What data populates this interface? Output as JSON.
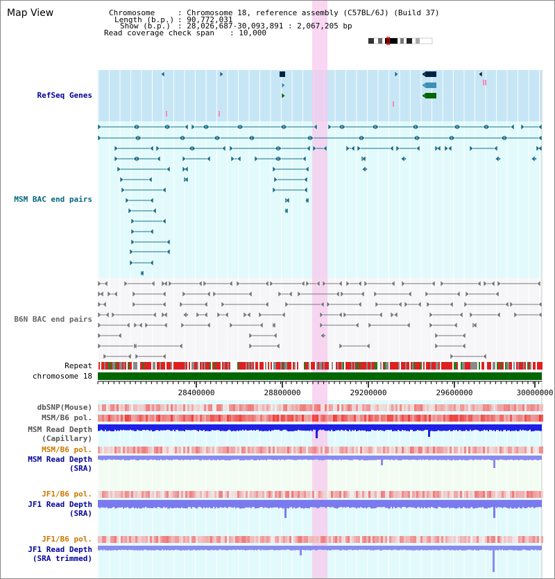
{
  "title": "Map View",
  "info": {
    "chromosome_key": "Chromosome",
    "chromosome_val": ": Chromosome 18, reference assembly (C57BL/6J) (Build 37)",
    "length_key": "Length (b.p.)",
    "length_val": ": 90,772,031",
    "show_key": "Show (b.p.)",
    "show_val": ": 28,026,687-30,093,891 : 2,067,205 bp",
    "coverage_key": "Read coverage check span",
    "coverage_val": ": 10,000"
  },
  "tracks": {
    "refseq": "RefSeq Genes",
    "msm_bac": "MSM BAC end pairs",
    "b6n_bac": "B6N BAC end pairs",
    "repeat": "Repeat",
    "chromosome": "chromosome 18",
    "dbsnp": "dbSNP(Mouse)",
    "msm_b6_pol_cap": "MSM/B6 pol.",
    "msm_depth_cap_1": "MSM Read Depth",
    "msm_depth_cap_2": "(Capillary)",
    "msm_b6_pol_sra": "MSM/B6 pol.",
    "msm_depth_sra_1": "MSM Read Depth",
    "msm_depth_sra_2": "(SRA)",
    "jf1_b6_pol": "JF1/B6 pol.",
    "jf1_depth_1": "JF1 Read Depth",
    "jf1_depth_2": "(SRA)",
    "jf1_b6_pol_trim": "JF1/B6 pol.",
    "jf1_depth_trim_1": "JF1 Read Depth",
    "jf1_depth_trim_2": "(SRA trimmed)"
  },
  "axis": {
    "ticks": [
      "28400000",
      "28800000",
      "29200000",
      "29600000",
      "30000000"
    ]
  },
  "colors": {
    "refseq_bg": "#c6e6f6",
    "msm_bg": "#e2fafb",
    "b6n_bg": "#f6f6f8",
    "lower_bg_a": "#e2fafb",
    "lower_bg_b": "#f6f6fc",
    "highlight": "#f7c8ee",
    "msm_label": "#006680",
    "refseq_label": "#000099",
    "b6n_label": "#666666",
    "depth_label": "#000099",
    "pol_label": "#cc7700",
    "chromosome_bar": "#006600"
  }
}
